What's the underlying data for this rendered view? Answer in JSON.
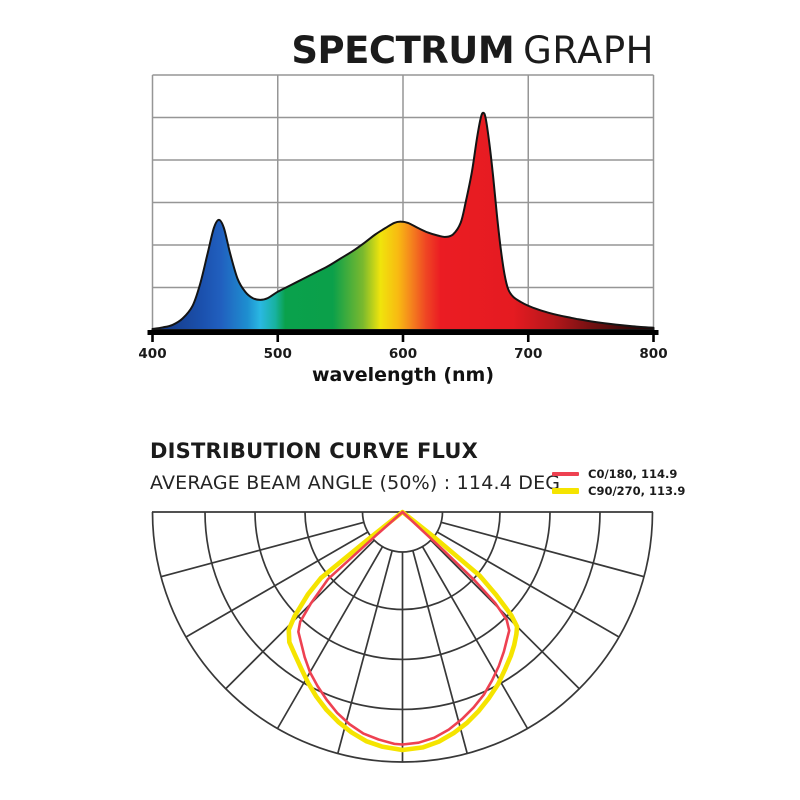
{
  "page": {
    "background": "#ffffff"
  },
  "header": {
    "title_strong": "SPECTRUM",
    "title_light": "GRAPH"
  },
  "spectrum": {
    "xlabel": "wavelength (nm)",
    "x_ticks": [
      "400",
      "500",
      "600",
      "700",
      "800"
    ]
  },
  "distribution": {
    "title": "DISTRIBUTION CURVE FLUX",
    "subtitle": "AVERAGE BEAM ANGLE  (50%) : 114.4 DEG",
    "legend": [
      {
        "label": "C0/180, 114.9",
        "color": "#ee4151"
      },
      {
        "label": "C90/270, 113.9",
        "color": "#f5e400"
      }
    ]
  },
  "chart_data": [
    {
      "type": "area",
      "title": "SPECTRUM GRAPH",
      "xlabel": "wavelength (nm)",
      "xlim": [
        400,
        800
      ],
      "ylim": [
        0,
        1
      ],
      "x_ticks": [
        400,
        500,
        600,
        700,
        800
      ],
      "grid_rows": 6,
      "grid_color": "#969696",
      "outline_color": "#141414",
      "axis_color": "#000000",
      "tick_label_color": "#1a1a1a",
      "points": [
        [
          400,
          0.004
        ],
        [
          408,
          0.01
        ],
        [
          416,
          0.02
        ],
        [
          424,
          0.045
        ],
        [
          432,
          0.095
        ],
        [
          438,
          0.18
        ],
        [
          444,
          0.3
        ],
        [
          449,
          0.4
        ],
        [
          453,
          0.432
        ],
        [
          457,
          0.4
        ],
        [
          462,
          0.3
        ],
        [
          468,
          0.2
        ],
        [
          474,
          0.15
        ],
        [
          480,
          0.125
        ],
        [
          486,
          0.118
        ],
        [
          492,
          0.125
        ],
        [
          500,
          0.15
        ],
        [
          510,
          0.175
        ],
        [
          520,
          0.2
        ],
        [
          530,
          0.225
        ],
        [
          540,
          0.25
        ],
        [
          550,
          0.28
        ],
        [
          560,
          0.31
        ],
        [
          570,
          0.345
        ],
        [
          578,
          0.375
        ],
        [
          586,
          0.4
        ],
        [
          593,
          0.42
        ],
        [
          598,
          0.425
        ],
        [
          604,
          0.42
        ],
        [
          612,
          0.4
        ],
        [
          620,
          0.382
        ],
        [
          628,
          0.37
        ],
        [
          634,
          0.365
        ],
        [
          640,
          0.375
        ],
        [
          646,
          0.42
        ],
        [
          650,
          0.5
        ],
        [
          655,
          0.62
        ],
        [
          659,
          0.75
        ],
        [
          662,
          0.83
        ],
        [
          664,
          0.852
        ],
        [
          666,
          0.83
        ],
        [
          669,
          0.73
        ],
        [
          672,
          0.6
        ],
        [
          675,
          0.45
        ],
        [
          678,
          0.32
        ],
        [
          681,
          0.22
        ],
        [
          684,
          0.16
        ],
        [
          688,
          0.13
        ],
        [
          694,
          0.11
        ],
        [
          700,
          0.095
        ],
        [
          708,
          0.08
        ],
        [
          716,
          0.068
        ],
        [
          724,
          0.058
        ],
        [
          732,
          0.05
        ],
        [
          740,
          0.042
        ],
        [
          750,
          0.034
        ],
        [
          760,
          0.027
        ],
        [
          770,
          0.021
        ],
        [
          780,
          0.016
        ],
        [
          790,
          0.012
        ],
        [
          800,
          0.009
        ]
      ],
      "gradient_stops": [
        [
          0.0,
          "#15357e"
        ],
        [
          0.1,
          "#1b51ae"
        ],
        [
          0.1375,
          "#2160bf"
        ],
        [
          0.19,
          "#1e8fd0"
        ],
        [
          0.215,
          "#2ab8e2"
        ],
        [
          0.245,
          "#18b2a0"
        ],
        [
          0.265,
          "#0aa14c"
        ],
        [
          0.36,
          "#0ba04a"
        ],
        [
          0.42,
          "#7ab92e"
        ],
        [
          0.455,
          "#f0e40c"
        ],
        [
          0.49,
          "#f8ba12"
        ],
        [
          0.515,
          "#f5871d"
        ],
        [
          0.545,
          "#ef4723"
        ],
        [
          0.575,
          "#eb1c23"
        ],
        [
          0.72,
          "#e51b21"
        ],
        [
          0.8,
          "#b5171b"
        ],
        [
          0.88,
          "#701011"
        ],
        [
          0.95,
          "#3a0808"
        ],
        [
          1.0,
          "#200404"
        ]
      ]
    },
    {
      "type": "polar_distribution",
      "title": "DISTRIBUTION CURVE FLUX",
      "subtitle": "AVERAGE BEAM ANGLE  (50%) : 114.4 DEG",
      "grid_color": "#383838",
      "rings_r_fraction": [
        0.16,
        0.39,
        0.59,
        0.79,
        1.0
      ],
      "radial_step_deg": 15,
      "radial_max_deg": 75,
      "series": [
        {
          "name": "C0/180, 114.9",
          "color": "#ee4151",
          "width": 2.6,
          "points": [
            [
              -49,
              0
            ],
            [
              -48.5,
              0.14
            ],
            [
              -48,
              0.4
            ],
            [
              -45,
              0.52
            ],
            [
              -43,
              0.6
            ],
            [
              -41,
              0.635
            ],
            [
              -38,
              0.66
            ],
            [
              -34,
              0.7
            ],
            [
              -30,
              0.74
            ],
            [
              -26,
              0.775
            ],
            [
              -22,
              0.81
            ],
            [
              -18,
              0.845
            ],
            [
              -14,
              0.875
            ],
            [
              -10,
              0.9
            ],
            [
              -6,
              0.915
            ],
            [
              -2,
              0.928
            ],
            [
              0,
              0.93
            ],
            [
              4,
              0.925
            ],
            [
              8,
              0.912
            ],
            [
              12,
              0.89
            ],
            [
              16,
              0.862
            ],
            [
              20,
              0.832
            ],
            [
              24,
              0.8
            ],
            [
              28,
              0.763
            ],
            [
              32,
              0.727
            ],
            [
              36,
              0.69
            ],
            [
              39,
              0.662
            ],
            [
              42,
              0.638
            ],
            [
              44,
              0.6
            ],
            [
              45.5,
              0.52
            ],
            [
              46.5,
              0.4
            ],
            [
              47,
              0.22
            ],
            [
              47.5,
              0
            ]
          ]
        },
        {
          "name": "C90/270, 113.9",
          "color": "#f5e400",
          "width": 4.6,
          "points": [
            [
              -52,
              0
            ],
            [
              -51.5,
              0.18
            ],
            [
              -51,
              0.42
            ],
            [
              -49,
              0.5
            ],
            [
              -46,
              0.6
            ],
            [
              -44,
              0.655
            ],
            [
              -41,
              0.69
            ],
            [
              -37,
              0.715
            ],
            [
              -33,
              0.745
            ],
            [
              -29,
              0.78
            ],
            [
              -25,
              0.815
            ],
            [
              -21,
              0.848
            ],
            [
              -17,
              0.878
            ],
            [
              -13,
              0.905
            ],
            [
              -9,
              0.928
            ],
            [
              -5,
              0.942
            ],
            [
              0,
              0.952
            ],
            [
              5,
              0.945
            ],
            [
              9,
              0.93
            ],
            [
              13,
              0.908
            ],
            [
              17,
              0.882
            ],
            [
              21,
              0.852
            ],
            [
              25,
              0.82
            ],
            [
              29,
              0.788
            ],
            [
              33,
              0.752
            ],
            [
              37,
              0.72
            ],
            [
              40,
              0.695
            ],
            [
              43,
              0.668
            ],
            [
              45,
              0.648
            ],
            [
              46.5,
              0.6
            ],
            [
              48.5,
              0.5
            ],
            [
              50.5,
              0.4
            ],
            [
              51.5,
              0.17
            ],
            [
              52,
              0
            ]
          ]
        }
      ]
    }
  ]
}
